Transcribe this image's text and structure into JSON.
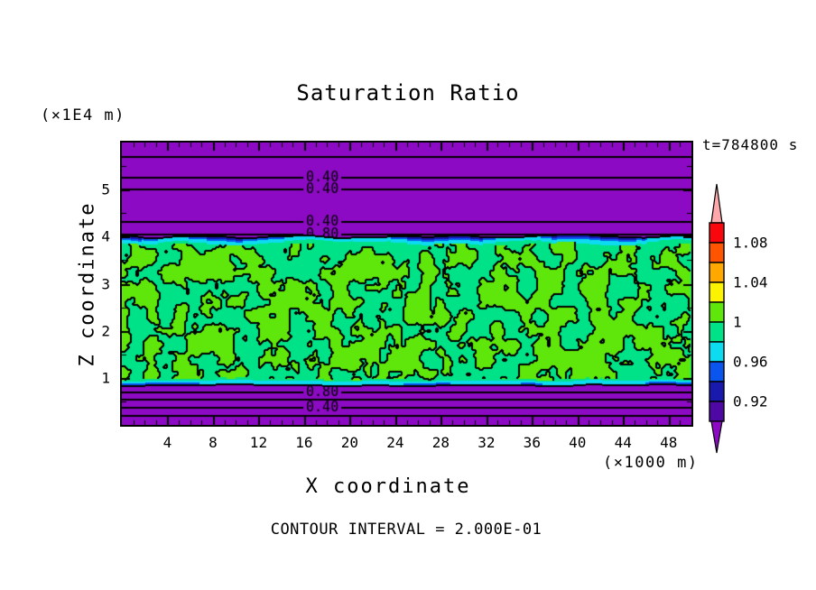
{
  "title": "Saturation Ratio",
  "time_label": "t=784800 s",
  "footer": "CONTOUR INTERVAL = 2.000E-01",
  "x_axis": {
    "label": "X coordinate",
    "unit": "(×1000 m)",
    "major_ticks": [
      4,
      8,
      12,
      16,
      20,
      24,
      28,
      32,
      36,
      40,
      44,
      48
    ],
    "range": [
      0,
      50
    ]
  },
  "y_axis": {
    "label": "Z coordinate",
    "unit": "(×1E4 m)",
    "major_ticks": [
      1,
      2,
      3,
      4,
      5
    ],
    "range": [
      0,
      6
    ]
  },
  "colors": {
    "purple": "#8C0AC3",
    "indigo": "#4E08A3",
    "navy": "#1919AE",
    "blue": "#0A55EE",
    "cyan": "#0DDBEF",
    "spring": "#00E287",
    "chartreuse": "#5FE60A",
    "yellow": "#FBF300",
    "orange": "#FFA800",
    "orange_red": "#FF5400",
    "red": "#F9070C",
    "pink": "#FFA8AC",
    "line": "#000000",
    "background": "#FFFFFF"
  },
  "colorbar": {
    "labels": [
      "1.08",
      "1.04",
      "1",
      "0.96",
      "0.92"
    ],
    "labeled_boundary_after_cell": [
      0,
      2,
      4,
      6,
      8
    ],
    "cells_top_to_bottom": [
      "red",
      "orange_red",
      "orange",
      "yellow",
      "chartreuse",
      "spring",
      "cyan",
      "blue",
      "navy",
      "indigo"
    ],
    "over_arrow": "pink",
    "under_arrow": "purple"
  },
  "chart_data": {
    "type": "heatmap",
    "title": "Saturation Ratio",
    "time_annotation": "t=784800 s",
    "xlabel": "X coordinate",
    "x_unit": "(×1000 m)",
    "ylabel": "Z coordinate",
    "y_unit": "(×1E4 m)",
    "x_range": [
      0,
      50
    ],
    "y_range": [
      0,
      6
    ],
    "x_major_ticks": [
      4,
      8,
      12,
      16,
      20,
      24,
      28,
      32,
      36,
      40,
      44,
      48
    ],
    "x_minor_tick_step": 1,
    "y_major_ticks": [
      1,
      2,
      3,
      4,
      5
    ],
    "y_minor_tick_step": 0.5,
    "contour_interval": 0.2,
    "contour_interval_label": "CONTOUR INTERVAL = 2.000E-01",
    "colorbar_levels": [
      1.1,
      1.08,
      1.06,
      1.04,
      1.02,
      1.0,
      0.98,
      0.96,
      0.94,
      0.92,
      0.9
    ],
    "h_contour_lines": [
      {
        "z": 5.71,
        "label": ""
      },
      {
        "z": 5.28,
        "label": "0.40"
      },
      {
        "z": 5.02,
        "label": "0.40"
      },
      {
        "z": 4.34,
        "label": "0.40"
      },
      {
        "z": 4.06,
        "label": "0.80"
      },
      {
        "z": 0.7,
        "label": "0.80"
      },
      {
        "z": 0.56,
        "label": ""
      },
      {
        "z": 0.39,
        "label": "0.40"
      },
      {
        "z": 0.22,
        "label": ""
      }
    ],
    "contour_label_x": 17.6,
    "band": {
      "z_top": 4.02,
      "z_bottom": 0.84,
      "description": "noisy saturated band alternating between 0.98-1.00 (spring green) and 1.00-1.02 (chartreuse) cells with black contour outlines; thin navy/blue/cyan strips (0.90-0.98) along top and bottom edges",
      "noise_seed": 1234
    },
    "regions": [
      {
        "name": "upper-subsaturated-layer",
        "z_from": 4.02,
        "z_to": 6.0,
        "value": "< 0.90",
        "fill": "purple"
      },
      {
        "name": "saturated-noisy-band",
        "z_from": 0.84,
        "z_to": 4.02,
        "value": "0.98 - 1.02",
        "fill": "chartreuse/spring mix"
      },
      {
        "name": "lower-subsaturated-layer",
        "z_from": 0.0,
        "z_to": 0.84,
        "value": "< 0.90",
        "fill": "purple"
      }
    ]
  }
}
